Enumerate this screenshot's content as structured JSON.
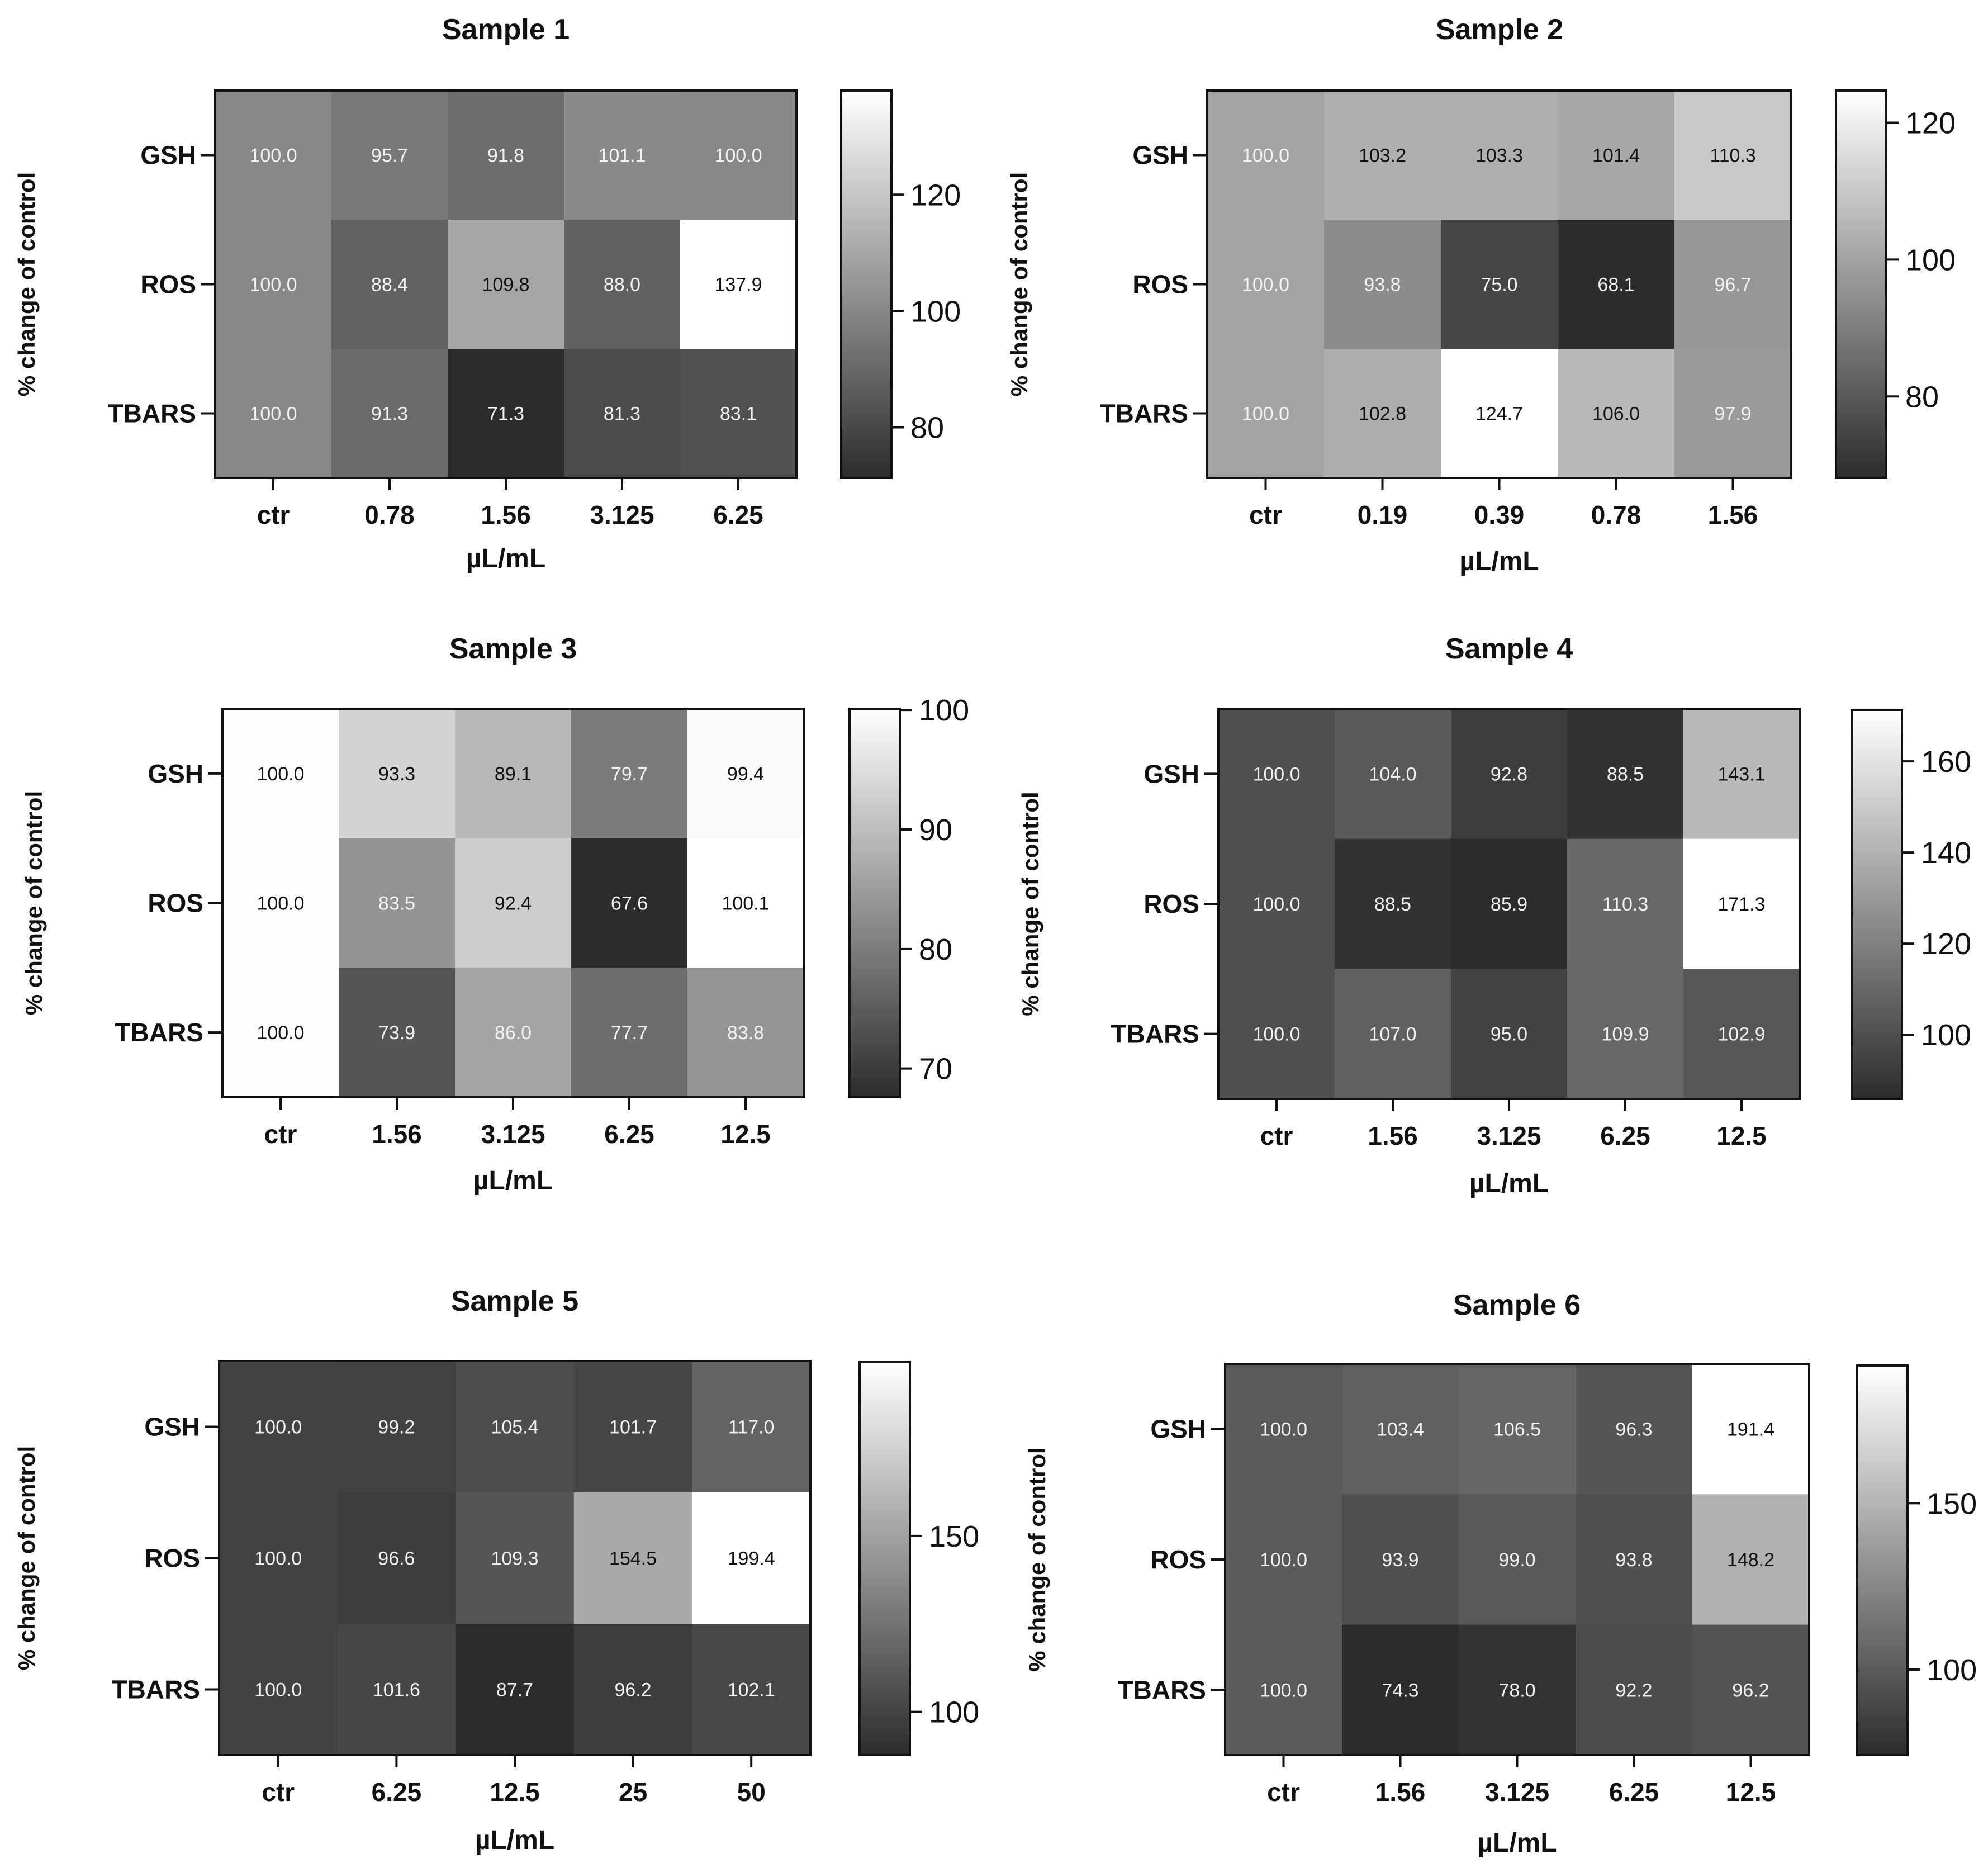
{
  "colors": {
    "ink": "#111111",
    "background": "#ffffff"
  },
  "chart_data": [
    {
      "type": "heatmap",
      "title": "Sample 1",
      "xlabel": "µL/mL",
      "ylabel": "% change of control",
      "rows": [
        "GSH",
        "ROS",
        "TBARS"
      ],
      "categories": [
        "ctr",
        "0.78",
        "1.56",
        "3.125",
        "6.25"
      ],
      "values": [
        [
          100.0,
          95.7,
          91.8,
          101.1,
          100.0
        ],
        [
          100.0,
          88.4,
          109.8,
          88.0,
          137.9
        ],
        [
          100.0,
          91.3,
          71.3,
          81.3,
          83.1
        ]
      ],
      "value_labels": [
        [
          "100.0",
          "95.7",
          "91.8",
          "101.1",
          "100.0"
        ],
        [
          "100.0",
          "88.4",
          "109.8",
          "88.0",
          "137.9"
        ],
        [
          "100.0",
          "91.3",
          "71.3",
          "81.3",
          "83.1"
        ]
      ],
      "colorbar": {
        "range": [
          71.3,
          137.9
        ],
        "ticks": [
          80,
          100,
          120
        ],
        "tick_labels": [
          "80",
          "100",
          "120"
        ]
      }
    },
    {
      "type": "heatmap",
      "title": "Sample 2",
      "xlabel": "µL/mL",
      "ylabel": "% change of control",
      "rows": [
        "GSH",
        "ROS",
        "TBARS"
      ],
      "categories": [
        "ctr",
        "0.19",
        "0.39",
        "0.78",
        "1.56"
      ],
      "values": [
        [
          100.0,
          103.2,
          103.3,
          101.4,
          110.3
        ],
        [
          100.0,
          93.8,
          75.0,
          68.1,
          96.7
        ],
        [
          100.0,
          102.8,
          124.7,
          106.0,
          97.9
        ]
      ],
      "value_labels": [
        [
          "100.0",
          "103.2",
          "103.3",
          "101.4",
          "110.3"
        ],
        [
          "100.0",
          "93.8",
          "75.0",
          "68.1",
          "96.7"
        ],
        [
          "100.0",
          "102.8",
          "124.7",
          "106.0",
          "97.9"
        ]
      ],
      "colorbar": {
        "range": [
          68.1,
          124.7
        ],
        "ticks": [
          80,
          100,
          120
        ],
        "tick_labels": [
          "80",
          "100",
          "120"
        ]
      }
    },
    {
      "type": "heatmap",
      "title": "Sample 3",
      "xlabel": "µL/mL",
      "ylabel": "% change of control",
      "rows": [
        "GSH",
        "ROS",
        "TBARS"
      ],
      "categories": [
        "ctr",
        "1.56",
        "3.125",
        "6.25",
        "12.5"
      ],
      "values": [
        [
          100.0,
          93.3,
          89.1,
          79.7,
          99.4
        ],
        [
          100.0,
          83.5,
          92.4,
          67.6,
          100.1
        ],
        [
          100.0,
          73.9,
          86.0,
          77.7,
          83.8
        ]
      ],
      "value_labels": [
        [
          "100.0",
          "93.3",
          "89.1",
          "79.7",
          "99.4"
        ],
        [
          "100.0",
          "83.5",
          "92.4",
          "67.6",
          "100.1"
        ],
        [
          "100.0",
          "73.9",
          "86.0",
          "77.7",
          "83.8"
        ]
      ],
      "colorbar": {
        "range": [
          67.6,
          100.1
        ],
        "ticks": [
          70,
          80,
          90,
          100
        ],
        "tick_labels": [
          "70",
          "80",
          "90",
          "100"
        ]
      }
    },
    {
      "type": "heatmap",
      "title": "Sample 4",
      "xlabel": "µL/mL",
      "ylabel": "% change of control",
      "rows": [
        "GSH",
        "ROS",
        "TBARS"
      ],
      "categories": [
        "ctr",
        "1.56",
        "3.125",
        "6.25",
        "12.5"
      ],
      "values": [
        [
          100.0,
          104.0,
          92.8,
          88.5,
          143.1
        ],
        [
          100.0,
          88.5,
          85.9,
          110.3,
          171.3
        ],
        [
          100.0,
          107.0,
          95.0,
          109.9,
          102.9
        ]
      ],
      "value_labels": [
        [
          "100.0",
          "104.0",
          "92.8",
          "88.5",
          "143.1"
        ],
        [
          "100.0",
          "88.5",
          "85.9",
          "110.3",
          "171.3"
        ],
        [
          "100.0",
          "107.0",
          "95.0",
          "109.9",
          "102.9"
        ]
      ],
      "colorbar": {
        "range": [
          85.9,
          171.3
        ],
        "ticks": [
          100,
          120,
          140,
          160
        ],
        "tick_labels": [
          "100",
          "120",
          "140",
          "160"
        ]
      }
    },
    {
      "type": "heatmap",
      "title": "Sample 5",
      "xlabel": "µL/mL",
      "ylabel": "% change of control",
      "rows": [
        "GSH",
        "ROS",
        "TBARS"
      ],
      "categories": [
        "ctr",
        "6.25",
        "12.5",
        "25",
        "50"
      ],
      "values": [
        [
          100.0,
          99.2,
          105.4,
          101.7,
          117.0
        ],
        [
          100.0,
          96.6,
          109.3,
          154.5,
          199.4
        ],
        [
          100.0,
          101.6,
          87.7,
          96.2,
          102.1
        ]
      ],
      "value_labels": [
        [
          "100.0",
          "99.2",
          "105.4",
          "101.7",
          "117.0"
        ],
        [
          "100.0",
          "96.6",
          "109.3",
          "154.5",
          "199.4"
        ],
        [
          "100.0",
          "101.6",
          "87.7",
          "96.2",
          "102.1"
        ]
      ],
      "colorbar": {
        "range": [
          87.7,
          199.4
        ],
        "ticks": [
          100,
          150
        ],
        "tick_labels": [
          "100",
          "150"
        ]
      }
    },
    {
      "type": "heatmap",
      "title": "Sample 6",
      "xlabel": "µL/mL",
      "ylabel": "% change of control",
      "rows": [
        "GSH",
        "ROS",
        "TBARS"
      ],
      "categories": [
        "ctr",
        "1.56",
        "3.125",
        "6.25",
        "12.5"
      ],
      "values": [
        [
          100.0,
          103.4,
          106.5,
          96.3,
          191.4
        ],
        [
          100.0,
          93.9,
          99.0,
          93.8,
          148.2
        ],
        [
          100.0,
          74.3,
          78.0,
          92.2,
          96.2
        ]
      ],
      "value_labels": [
        [
          "100.0",
          "103.4",
          "106.5",
          "96.3",
          "191.4"
        ],
        [
          "100.0",
          "93.9",
          "99.0",
          "93.8",
          "148.2"
        ],
        [
          "100.0",
          "74.3",
          "78.0",
          "92.2",
          "96.2"
        ]
      ],
      "colorbar": {
        "range": [
          74.3,
          191.4
        ],
        "ticks": [
          100,
          150
        ],
        "tick_labels": [
          "100",
          "150"
        ]
      }
    }
  ]
}
